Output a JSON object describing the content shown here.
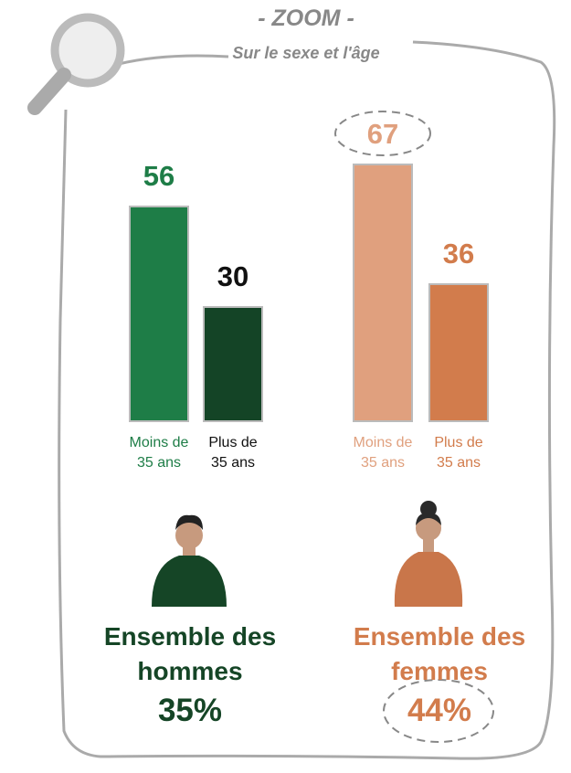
{
  "chart_data": {
    "type": "bar",
    "title": "- ZOOM -",
    "subtitle": "Sur le sexe et l'âge",
    "categories": [
      "Moins de 35 ans",
      "Plus de 35 ans",
      "Moins de 35 ans",
      "Plus de 35 ans"
    ],
    "values": [
      56,
      30,
      67,
      36
    ],
    "colors": [
      "#1e7d47",
      "#144426",
      "#e0a07e",
      "#d27c4c"
    ],
    "label_colors": [
      "#1e7d47",
      "#111111",
      "#e0a07e",
      "#d27c4c"
    ],
    "ylim": [
      0,
      100
    ],
    "summaries": [
      {
        "label": "Ensemble des hommes",
        "value": 35,
        "value_label": "35%",
        "color": "#154526"
      },
      {
        "label": "Ensemble des femmes",
        "value": 44,
        "value_label": "44%",
        "color": "#d27c4c"
      }
    ]
  }
}
